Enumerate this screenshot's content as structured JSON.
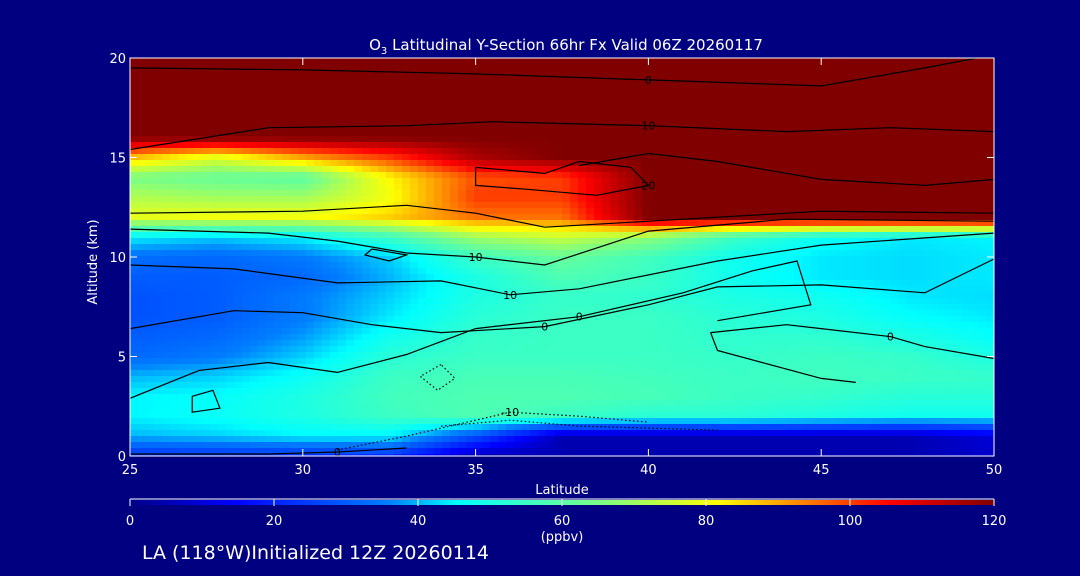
{
  "chart_data": {
    "type": "heatmap",
    "title": "O3 Latitudinal Y-Section 66hr  Fx Valid 06Z 20260117",
    "title_parts": {
      "species_base": "O",
      "species_sub": "3",
      "rest": " Latitudinal Y-Section 66hr  Fx Valid 06Z 20260117"
    },
    "xlabel": "Latitude",
    "ylabel": "Altitude (km)",
    "xlim": [
      25,
      50
    ],
    "ylim": [
      0,
      20
    ],
    "x_ticks": [
      25,
      30,
      35,
      40,
      45,
      50
    ],
    "y_ticks": [
      0,
      5,
      10,
      15,
      20
    ],
    "colorbar": {
      "label": "(ppbv)",
      "min": 0,
      "max": 120,
      "ticks": [
        0,
        20,
        40,
        60,
        80,
        100,
        120
      ],
      "colormap": "rainbow"
    },
    "lat_grid": [
      25,
      27.5,
      30,
      32.5,
      35,
      37.5,
      40,
      42.5,
      45,
      47.5,
      50
    ],
    "alt_grid": [
      0,
      1,
      2,
      3,
      4,
      5,
      6,
      7,
      8,
      9,
      10,
      11,
      12,
      13,
      14,
      15,
      16,
      17,
      18,
      19,
      20
    ],
    "values": [
      [
        22,
        22,
        22,
        22,
        5,
        5,
        5,
        5,
        5,
        5,
        8
      ],
      [
        40,
        42,
        45,
        45,
        28,
        5,
        5,
        5,
        5,
        5,
        10
      ],
      [
        45,
        47,
        50,
        55,
        58,
        55,
        52,
        52,
        50,
        48,
        48
      ],
      [
        45,
        46,
        50,
        56,
        58,
        58,
        57,
        55,
        54,
        52,
        52
      ],
      [
        40,
        42,
        47,
        55,
        57,
        57,
        56,
        55,
        56,
        55,
        54
      ],
      [
        32,
        35,
        42,
        52,
        55,
        55,
        55,
        54,
        55,
        54,
        50
      ],
      [
        30,
        32,
        38,
        48,
        54,
        55,
        55,
        53,
        53,
        50,
        46
      ],
      [
        28,
        30,
        35,
        44,
        52,
        55,
        55,
        52,
        50,
        46,
        44
      ],
      [
        28,
        30,
        35,
        42,
        50,
        54,
        53,
        50,
        48,
        44,
        43
      ],
      [
        30,
        30,
        32,
        40,
        50,
        58,
        55,
        48,
        44,
        43,
        44
      ],
      [
        33,
        32,
        35,
        42,
        55,
        62,
        56,
        48,
        44,
        43,
        44
      ],
      [
        45,
        42,
        45,
        55,
        70,
        75,
        68,
        55,
        47,
        44,
        45
      ],
      [
        78,
        80,
        80,
        86,
        95,
        95,
        120,
        120,
        120,
        120,
        120
      ],
      [
        72,
        70,
        70,
        80,
        100,
        100,
        120,
        120,
        120,
        120,
        120
      ],
      [
        65,
        62,
        60,
        82,
        98,
        100,
        120,
        120,
        120,
        120,
        120
      ],
      [
        88,
        78,
        90,
        100,
        115,
        120,
        120,
        120,
        120,
        120,
        120
      ],
      [
        120,
        120,
        120,
        120,
        120,
        120,
        120,
        120,
        120,
        120,
        120
      ],
      [
        120,
        120,
        120,
        120,
        120,
        120,
        120,
        120,
        120,
        120,
        120
      ],
      [
        120,
        120,
        120,
        120,
        120,
        120,
        120,
        120,
        120,
        120,
        120
      ],
      [
        120,
        120,
        120,
        120,
        120,
        120,
        120,
        120,
        120,
        120,
        120
      ],
      [
        120,
        120,
        120,
        120,
        120,
        120,
        120,
        120,
        120,
        120,
        120
      ]
    ],
    "contours": [
      {
        "level": "0",
        "style": "solid",
        "points": [
          [
            25,
            19.5
          ],
          [
            30,
            19.4
          ],
          [
            35,
            19.2
          ],
          [
            40,
            18.9
          ],
          [
            45,
            18.6
          ],
          [
            48,
            19.5
          ],
          [
            49.5,
            20
          ]
        ]
      },
      {
        "level": "10",
        "style": "solid",
        "points": [
          [
            25,
            15.4
          ],
          [
            29,
            16.5
          ],
          [
            33,
            16.6
          ],
          [
            35.5,
            16.8
          ],
          [
            40,
            16.6
          ],
          [
            44,
            16.3
          ],
          [
            47,
            16.5
          ],
          [
            50,
            16.3
          ]
        ]
      },
      {
        "level": "20",
        "style": "solid",
        "points": [
          [
            35,
            14.5
          ],
          [
            37,
            14.2
          ],
          [
            38,
            14.8
          ],
          [
            39.5,
            14.5
          ],
          [
            40,
            13.6
          ],
          [
            38.5,
            13.1
          ],
          [
            36.5,
            13.4
          ],
          [
            35,
            13.6
          ],
          [
            35,
            14.5
          ]
        ]
      },
      {
        "level": "",
        "style": "solid",
        "points": [
          [
            38,
            14.6
          ],
          [
            40,
            15.2
          ],
          [
            42,
            14.8
          ],
          [
            45,
            13.9
          ],
          [
            48,
            13.6
          ],
          [
            50,
            13.9
          ]
        ]
      },
      {
        "level": "",
        "style": "solid",
        "points": [
          [
            25,
            12.2
          ],
          [
            30,
            12.3
          ],
          [
            33,
            12.6
          ],
          [
            35,
            12.2
          ],
          [
            37,
            11.5
          ],
          [
            40,
            11.8
          ],
          [
            45,
            12.3
          ],
          [
            50,
            12.2
          ]
        ]
      },
      {
        "level": "10",
        "style": "solid",
        "points": [
          [
            25,
            11.4
          ],
          [
            29,
            11.2
          ],
          [
            31,
            10.8
          ],
          [
            33,
            10.2
          ],
          [
            35,
            10.0
          ],
          [
            37,
            9.6
          ],
          [
            40,
            11.3
          ],
          [
            44,
            11.9
          ],
          [
            50,
            11.8
          ]
        ]
      },
      {
        "level": "10",
        "style": "solid",
        "points": [
          [
            25,
            9.6
          ],
          [
            28,
            9.4
          ],
          [
            31,
            8.7
          ],
          [
            34,
            8.8
          ],
          [
            36,
            8.1
          ],
          [
            38,
            8.4
          ],
          [
            42,
            9.8
          ],
          [
            45,
            10.6
          ],
          [
            50,
            11.2
          ]
        ]
      },
      {
        "level": "",
        "style": "solid",
        "points": [
          [
            32,
            10.4
          ],
          [
            33,
            10.1
          ],
          [
            32.5,
            9.8
          ],
          [
            31.8,
            10.1
          ],
          [
            32,
            10.4
          ]
        ]
      },
      {
        "level": "0",
        "style": "solid",
        "points": [
          [
            25,
            2.9
          ],
          [
            27,
            4.3
          ],
          [
            29,
            4.7
          ],
          [
            31,
            4.2
          ],
          [
            33,
            5.1
          ],
          [
            35,
            6.4
          ],
          [
            38,
            7.0
          ],
          [
            41,
            8.2
          ],
          [
            43,
            9.3
          ],
          [
            44.3,
            9.8
          ],
          [
            44.7,
            7.6
          ],
          [
            42,
            6.8
          ]
        ]
      },
      {
        "level": "0",
        "style": "solid",
        "points": [
          [
            25,
            6.4
          ],
          [
            28,
            7.3
          ],
          [
            30,
            7.2
          ],
          [
            32,
            6.6
          ],
          [
            34,
            6.2
          ],
          [
            37,
            6.5
          ],
          [
            40,
            7.6
          ],
          [
            42,
            8.5
          ],
          [
            45,
            8.6
          ],
          [
            48,
            8.2
          ],
          [
            50,
            9.9
          ]
        ]
      },
      {
        "level": "0",
        "style": "solid",
        "points": [
          [
            41.8,
            6.2
          ],
          [
            44,
            6.6
          ],
          [
            45,
            6.4
          ],
          [
            47,
            6.0
          ],
          [
            48,
            5.5
          ],
          [
            50,
            4.9
          ]
        ]
      },
      {
        "level": "",
        "style": "solid",
        "points": [
          [
            41.8,
            6.2
          ],
          [
            42,
            5.3
          ],
          [
            45,
            3.9
          ],
          [
            46,
            3.7
          ]
        ]
      },
      {
        "level": "",
        "style": "solid",
        "points": [
          [
            26.8,
            3.0
          ],
          [
            27.4,
            3.3
          ],
          [
            27.6,
            2.4
          ],
          [
            26.8,
            2.2
          ],
          [
            26.8,
            3.0
          ]
        ]
      },
      {
        "level": "-10",
        "style": "dotted",
        "points": [
          [
            31,
            0.3
          ],
          [
            33,
            1.0
          ],
          [
            35,
            1.8
          ],
          [
            36,
            2.2
          ],
          [
            37,
            2.1
          ],
          [
            38,
            2.0
          ],
          [
            40,
            1.7
          ]
        ]
      },
      {
        "level": "",
        "style": "dotted",
        "points": [
          [
            34,
            1.5
          ],
          [
            36,
            1.8
          ],
          [
            38,
            1.5
          ],
          [
            40,
            1.4
          ],
          [
            42,
            1.3
          ]
        ]
      },
      {
        "level": "",
        "style": "dotted",
        "points": [
          [
            34,
            4.6
          ],
          [
            33.4,
            4.0
          ],
          [
            33.9,
            3.3
          ],
          [
            34.4,
            3.9
          ],
          [
            34,
            4.6
          ]
        ]
      },
      {
        "level": "0",
        "style": "solid",
        "points": [
          [
            25,
            0.1
          ],
          [
            29,
            0.1
          ],
          [
            31,
            0.2
          ],
          [
            33,
            0.4
          ]
        ]
      }
    ],
    "footer": "LA (118°W)Initialized 12Z 20260114"
  }
}
